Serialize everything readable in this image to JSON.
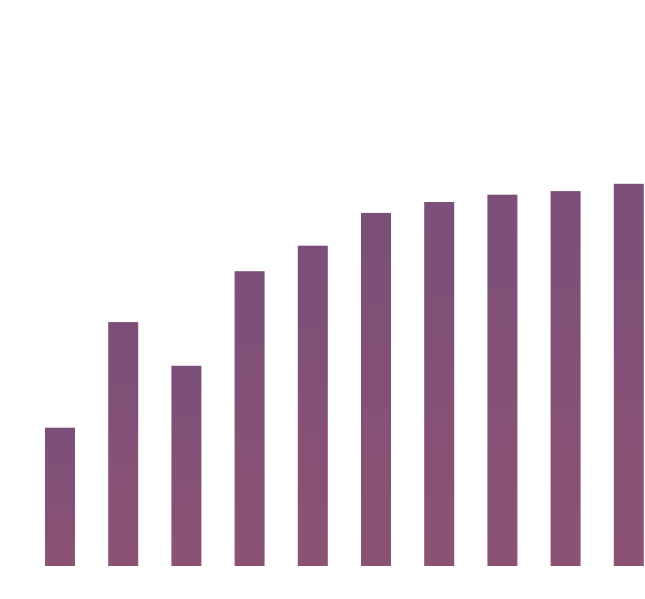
{
  "chart_data": {
    "type": "bar",
    "title": "",
    "xlabel": "",
    "ylabel": "",
    "categories": [
      "",
      "",
      "",
      "",
      "",
      "",
      "",
      "",
      "",
      ""
    ],
    "values": [
      38,
      67,
      55,
      81,
      88,
      97,
      100,
      102,
      103,
      105
    ],
    "data_labels": [
      "",
      "",
      "",
      "",
      "",
      "",
      "",
      "",
      "",
      ""
    ],
    "ylim": [
      0,
      150
    ],
    "yticks": [
      "",
      "",
      "",
      "",
      "",
      "",
      "",
      "",
      "",
      ""
    ],
    "grid": false,
    "legend": "none",
    "colors": {
      "bar_top": "#7b4f78",
      "bar_bottom": "#8c5273",
      "text": "#cfcfcf"
    }
  }
}
